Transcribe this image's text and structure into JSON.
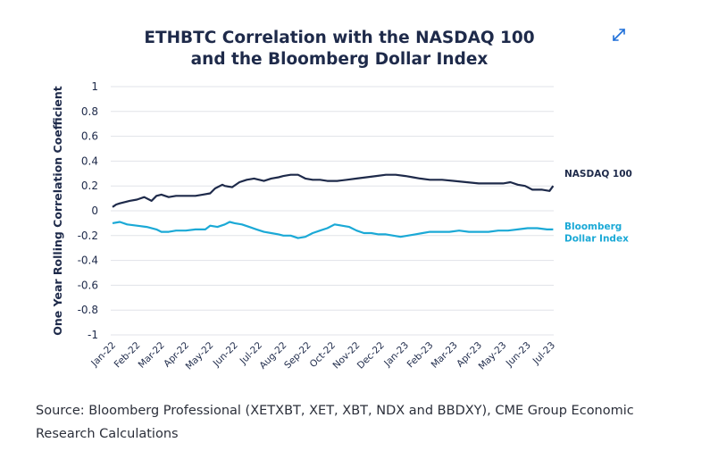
{
  "chart_data": {
    "type": "line",
    "title_lines": [
      "ETHBTC Correlation with the NASDAQ 100",
      "and the Bloomberg Dollar Index"
    ],
    "ylabel": "One Year Rolling Correlation Coefficient",
    "xlabel": "",
    "ylim": [
      -1,
      1
    ],
    "yticks": [
      "1",
      "0.8",
      "0.6",
      "0.4",
      "0.2",
      "0",
      "-0.2",
      "-0.4",
      "-0.6",
      "-0.8",
      "-1"
    ],
    "categories": [
      "Jan-22",
      "Feb-22",
      "Mar-22",
      "Apr-22",
      "May-22",
      "Jun-22",
      "Jul-22",
      "Aug-22",
      "Sep-22",
      "Oct-22",
      "Nov-22",
      "Dec-22",
      "Jan-23",
      "Feb-23",
      "Mar-23",
      "Apr-23",
      "May-23",
      "Jun-23",
      "Jul-23"
    ],
    "grid": "horizontal",
    "legend": "labels at right end of lines",
    "series": [
      {
        "name": "NASDAQ 100",
        "label_lines": [
          "NASDAQ 100"
        ],
        "color": "#1e2a4a",
        "x": [
          0,
          0.15,
          0.3,
          0.5,
          0.7,
          1.0,
          1.3,
          1.6,
          1.8,
          2.0,
          2.3,
          2.6,
          3.0,
          3.4,
          3.7,
          4.0,
          4.2,
          4.5,
          4.6,
          4.9,
          5.2,
          5.5,
          5.8,
          6.2,
          6.5,
          6.8,
          7.0,
          7.3,
          7.6,
          7.9,
          8.2,
          8.5,
          8.8,
          9.2,
          9.6,
          10.0,
          10.4,
          10.8,
          11.2,
          11.6,
          12.0,
          12.3,
          12.6,
          13.0,
          13.5,
          14.0,
          14.5,
          15.0,
          15.5,
          16.0,
          16.3,
          16.6,
          16.9,
          17.2,
          17.6,
          17.9,
          18.05
        ],
        "y": [
          0.03,
          0.05,
          0.06,
          0.07,
          0.08,
          0.09,
          0.11,
          0.08,
          0.12,
          0.13,
          0.11,
          0.12,
          0.12,
          0.12,
          0.13,
          0.14,
          0.18,
          0.21,
          0.2,
          0.19,
          0.23,
          0.25,
          0.26,
          0.24,
          0.26,
          0.27,
          0.28,
          0.29,
          0.29,
          0.26,
          0.25,
          0.25,
          0.24,
          0.24,
          0.25,
          0.26,
          0.27,
          0.28,
          0.29,
          0.29,
          0.28,
          0.27,
          0.26,
          0.25,
          0.25,
          0.24,
          0.23,
          0.22,
          0.22,
          0.22,
          0.23,
          0.21,
          0.2,
          0.17,
          0.17,
          0.16,
          0.2
        ]
      },
      {
        "name": "Bloomberg Dollar Index",
        "label_lines": [
          "Bloomberg",
          "Dollar Index"
        ],
        "color": "#1ba9d6",
        "x": [
          0,
          0.3,
          0.6,
          1.0,
          1.4,
          1.8,
          2.0,
          2.3,
          2.6,
          3.0,
          3.4,
          3.8,
          4.0,
          4.3,
          4.6,
          4.8,
          5.0,
          5.3,
          5.6,
          5.9,
          6.2,
          6.5,
          6.8,
          7.0,
          7.3,
          7.6,
          7.9,
          8.2,
          8.5,
          8.8,
          9.1,
          9.4,
          9.7,
          10.0,
          10.3,
          10.6,
          10.9,
          11.2,
          11.5,
          11.8,
          12.1,
          12.4,
          12.7,
          13.0,
          13.4,
          13.8,
          14.2,
          14.6,
          15.0,
          15.4,
          15.8,
          16.2,
          16.6,
          17.0,
          17.4,
          17.8,
          18.05
        ],
        "y": [
          -0.1,
          -0.09,
          -0.11,
          -0.12,
          -0.13,
          -0.15,
          -0.17,
          -0.17,
          -0.16,
          -0.16,
          -0.15,
          -0.15,
          -0.12,
          -0.13,
          -0.11,
          -0.09,
          -0.1,
          -0.11,
          -0.13,
          -0.15,
          -0.17,
          -0.18,
          -0.19,
          -0.2,
          -0.2,
          -0.22,
          -0.21,
          -0.18,
          -0.16,
          -0.14,
          -0.11,
          -0.12,
          -0.13,
          -0.16,
          -0.18,
          -0.18,
          -0.19,
          -0.19,
          -0.2,
          -0.21,
          -0.2,
          -0.19,
          -0.18,
          -0.17,
          -0.17,
          -0.17,
          -0.16,
          -0.17,
          -0.17,
          -0.17,
          -0.16,
          -0.16,
          -0.15,
          -0.14,
          -0.14,
          -0.15,
          -0.15
        ]
      }
    ]
  },
  "expand_icon": "expand-arrows-icon",
  "source_lines": [
    "Source: Bloomberg Professional (XETXBT, XET, XBT, NDX and BBDXY), CME Group Economic",
    "Research Calculations"
  ]
}
